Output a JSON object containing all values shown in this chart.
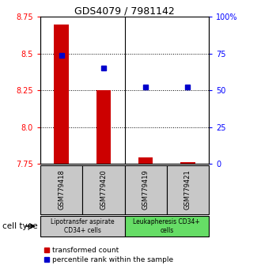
{
  "title": "GDS4079 / 7981142",
  "samples": [
    "GSM779418",
    "GSM779420",
    "GSM779419",
    "GSM779421"
  ],
  "transformed_counts": [
    8.7,
    8.25,
    7.795,
    7.762
  ],
  "bar_base": 7.75,
  "percentile_ranks": [
    74,
    65,
    52,
    52
  ],
  "ylim_left": [
    7.75,
    8.75
  ],
  "ylim_right": [
    0,
    100
  ],
  "yticks_left": [
    7.75,
    8.0,
    8.25,
    8.5,
    8.75
  ],
  "yticks_right": [
    0,
    25,
    50,
    75,
    100
  ],
  "ytick_labels_right": [
    "0",
    "25",
    "50",
    "75",
    "100%"
  ],
  "bar_color": "#cc0000",
  "marker_color": "#0000cc",
  "bg_color_sample": "#c8c8c8",
  "bg_color_group1": "#c8c8c8",
  "bg_color_group2": "#66dd66",
  "cell_type_label1": "Lipotransfer aspirate\nCD34+ cells",
  "cell_type_label2": "Leukapheresis CD34+\ncells",
  "legend_red": "transformed count",
  "legend_blue": "percentile rank within the sample",
  "dotted_yticks": [
    8.0,
    8.25,
    8.5
  ],
  "bar_width": 0.35,
  "group_split": 1.5
}
